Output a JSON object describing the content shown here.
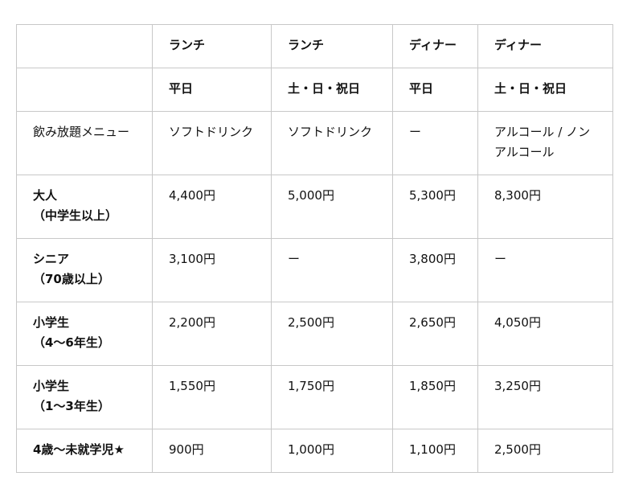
{
  "header": {
    "row1": [
      "",
      "ランチ",
      "ランチ",
      "ディナー",
      "ディナー"
    ],
    "row2": [
      "",
      "平日",
      "土・日・祝日",
      "平日",
      "土・日・祝日"
    ]
  },
  "drinks": {
    "label": "飲み放題メニュー",
    "values": [
      "ソフトドリンク",
      "ソフトドリンク",
      "ー",
      "アルコール / ノンアルコール"
    ]
  },
  "rows": [
    {
      "label": "大人",
      "sub": "（中学生以上）",
      "prices": [
        "4,400円",
        "5,000円",
        "5,300円",
        "8,300円"
      ]
    },
    {
      "label": "シニア",
      "sub": "（70歳以上）",
      "prices": [
        "3,100円",
        "ー",
        "3,800円",
        "ー"
      ]
    },
    {
      "label": "小学生",
      "sub": "（4〜6年生）",
      "prices": [
        "2,200円",
        "2,500円",
        "2,650円",
        "4,050円"
      ]
    },
    {
      "label": "小学生",
      "sub": "（1〜3年生）",
      "prices": [
        "1,550円",
        "1,750円",
        "1,850円",
        "3,250円"
      ]
    },
    {
      "label": "4歳〜未就学児★",
      "sub": "",
      "prices": [
        "900円",
        "1,000円",
        "1,100円",
        "2,500円"
      ]
    }
  ]
}
